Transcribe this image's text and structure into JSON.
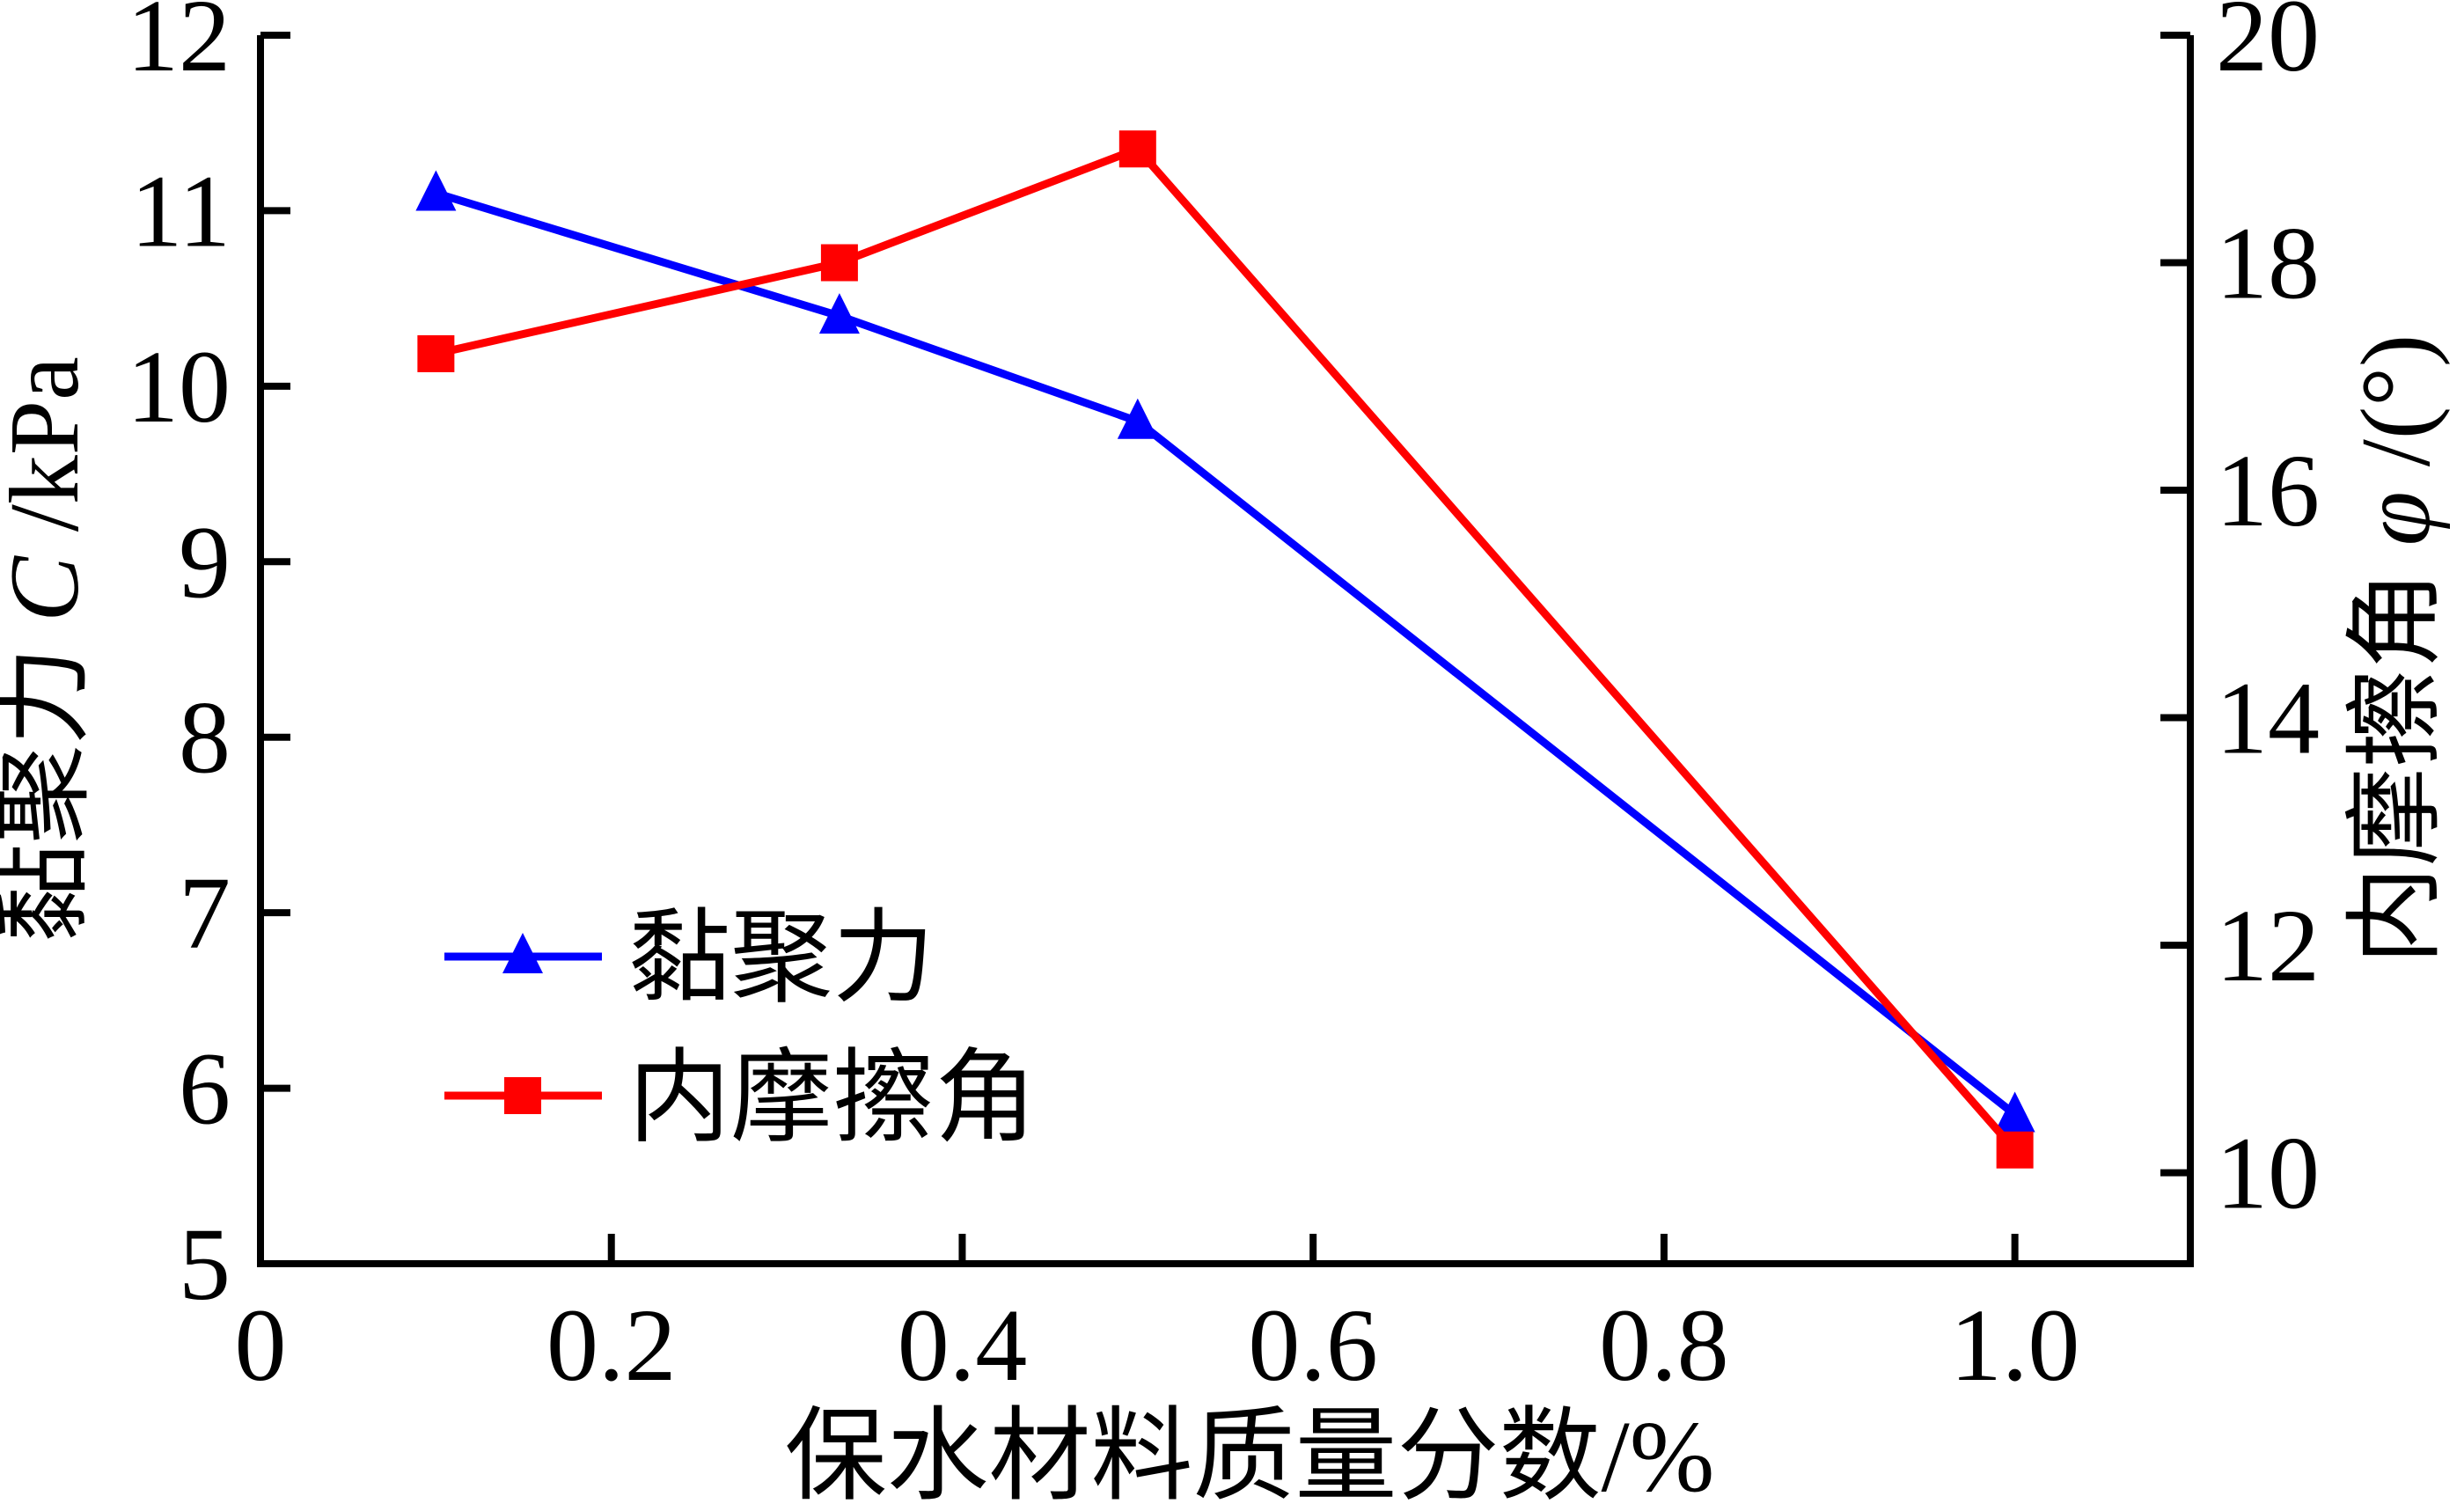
{
  "page": {
    "background_color": "#FFFFFF",
    "axis_color": "#000000"
  },
  "chart_data": {
    "type": "line",
    "title": "",
    "x": [
      0.1,
      0.33,
      0.5,
      1.0
    ],
    "series": [
      {
        "name": "黏聚力",
        "axis": "left",
        "color": "#0000FF",
        "marker": "triangle-up",
        "values": [
          11.1,
          10.4,
          9.8,
          5.85
        ]
      },
      {
        "name": "内摩擦角",
        "axis": "right",
        "color": "#FF0000",
        "marker": "square",
        "values": [
          17.2,
          18.0,
          19.0,
          10.2
        ]
      }
    ],
    "xlabel": "保水材料质量分数/%",
    "ylabel_left": {
      "pre": "黏聚力",
      "sym": "C",
      "post": "/kPa"
    },
    "ylabel_right": {
      "pre": "内摩擦角",
      "sym": "φ",
      "post": "/(°)"
    },
    "xlim": [
      0,
      1.1
    ],
    "ylim_left": [
      5,
      12
    ],
    "ylim_right": [
      9.2,
      20
    ],
    "xticks": [
      0,
      0.2,
      0.4,
      0.6,
      0.8,
      1.0
    ],
    "xtick_labels": [
      "0",
      "0.2",
      "0.4",
      "0.6",
      "0.8",
      "1.0"
    ],
    "yticks_left": [
      12,
      11,
      10,
      9,
      8,
      7,
      6,
      5
    ],
    "ytick_labels_left": [
      "12",
      "11",
      "10",
      "9",
      "8",
      "7",
      "6",
      "5"
    ],
    "yticks_right": [
      20,
      18,
      16,
      14,
      12,
      10
    ],
    "ytick_labels_right": [
      "20",
      "18",
      "16",
      "14",
      "12",
      "10"
    ],
    "grid": false,
    "legend": {
      "position": "inside-lower-left",
      "items": [
        "黏聚力",
        "内摩擦角"
      ]
    }
  }
}
